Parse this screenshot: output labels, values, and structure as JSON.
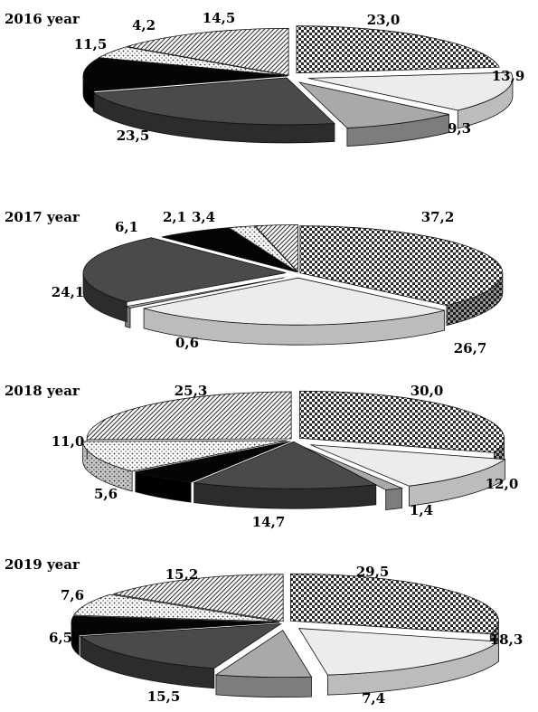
{
  "chart_data": [
    {
      "type": "pie",
      "title": "2016 year",
      "slices": [
        {
          "label": "23,0",
          "value": 23.0,
          "fill": "checker"
        },
        {
          "label": "13,9",
          "value": 13.9,
          "fill": "light"
        },
        {
          "label": "9,3",
          "value": 9.3,
          "fill": "midgray"
        },
        {
          "label": "23,5",
          "value": 23.5,
          "fill": "dark"
        },
        {
          "label": "11,5",
          "value": 11.5,
          "fill": "black"
        },
        {
          "label": "4,2",
          "value": 4.2,
          "fill": "dots"
        },
        {
          "label": "14,5",
          "value": 14.5,
          "fill": "diag"
        }
      ]
    },
    {
      "type": "pie",
      "title": "2017 year",
      "slices": [
        {
          "label": "37,2",
          "value": 37.2,
          "fill": "checker"
        },
        {
          "label": "26,7",
          "value": 26.7,
          "fill": "light"
        },
        {
          "label": "0,6",
          "value": 0.6,
          "fill": "midgray"
        },
        {
          "label": "24,1",
          "value": 24.1,
          "fill": "dark"
        },
        {
          "label": "6,1",
          "value": 6.1,
          "fill": "black"
        },
        {
          "label": "2,1",
          "value": 2.1,
          "fill": "dots"
        },
        {
          "label": "3,4",
          "value": 3.4,
          "fill": "diag"
        }
      ]
    },
    {
      "type": "pie",
      "title": "2018 year",
      "slices": [
        {
          "label": "30,0",
          "value": 30.0,
          "fill": "checker"
        },
        {
          "label": "12,0",
          "value": 12.0,
          "fill": "light"
        },
        {
          "label": "1,4",
          "value": 1.4,
          "fill": "midgray"
        },
        {
          "label": "14,7",
          "value": 14.7,
          "fill": "dark"
        },
        {
          "label": "5,6",
          "value": 5.6,
          "fill": "black"
        },
        {
          "label": "11,0",
          "value": 11.0,
          "fill": "dots"
        },
        {
          "label": "25,3",
          "value": 25.3,
          "fill": "diag"
        }
      ]
    },
    {
      "type": "pie",
      "title": "2019 year",
      "slices": [
        {
          "label": "29,5",
          "value": 29.5,
          "fill": "checker"
        },
        {
          "label": "18,3",
          "value": 18.3,
          "fill": "light"
        },
        {
          "label": "7,4",
          "value": 7.4,
          "fill": "midgray"
        },
        {
          "label": "15,5",
          "value": 15.5,
          "fill": "dark"
        },
        {
          "label": "6,5",
          "value": 6.5,
          "fill": "black"
        },
        {
          "label": "7,6",
          "value": 7.6,
          "fill": "dots"
        },
        {
          "label": "15,2",
          "value": 15.2,
          "fill": "diag"
        }
      ]
    }
  ]
}
